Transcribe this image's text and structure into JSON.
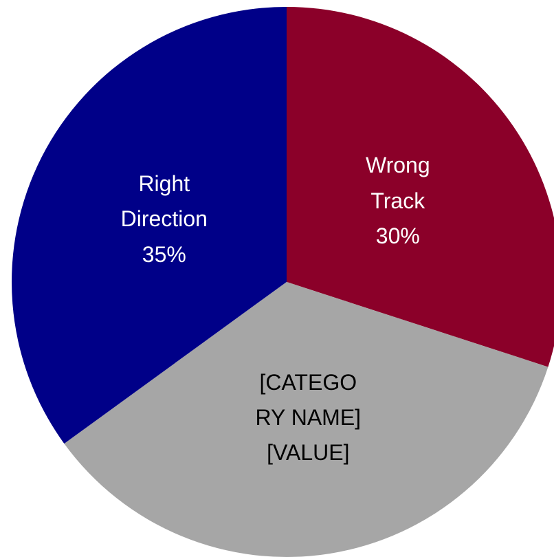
{
  "chart_data": {
    "type": "pie",
    "categories": [
      "Wrong Track",
      "[CATEGORY NAME]",
      "Right Direction"
    ],
    "values": [
      30,
      35,
      35
    ],
    "value_labels": [
      "30%",
      "[VALUE]",
      "35%"
    ],
    "colors": [
      "#8b0029",
      "#a6a6a6",
      "#000088"
    ],
    "label_colors": [
      "#ffffff",
      "#000000",
      "#ffffff"
    ],
    "start_angle": 0,
    "direction": "clockwise"
  }
}
